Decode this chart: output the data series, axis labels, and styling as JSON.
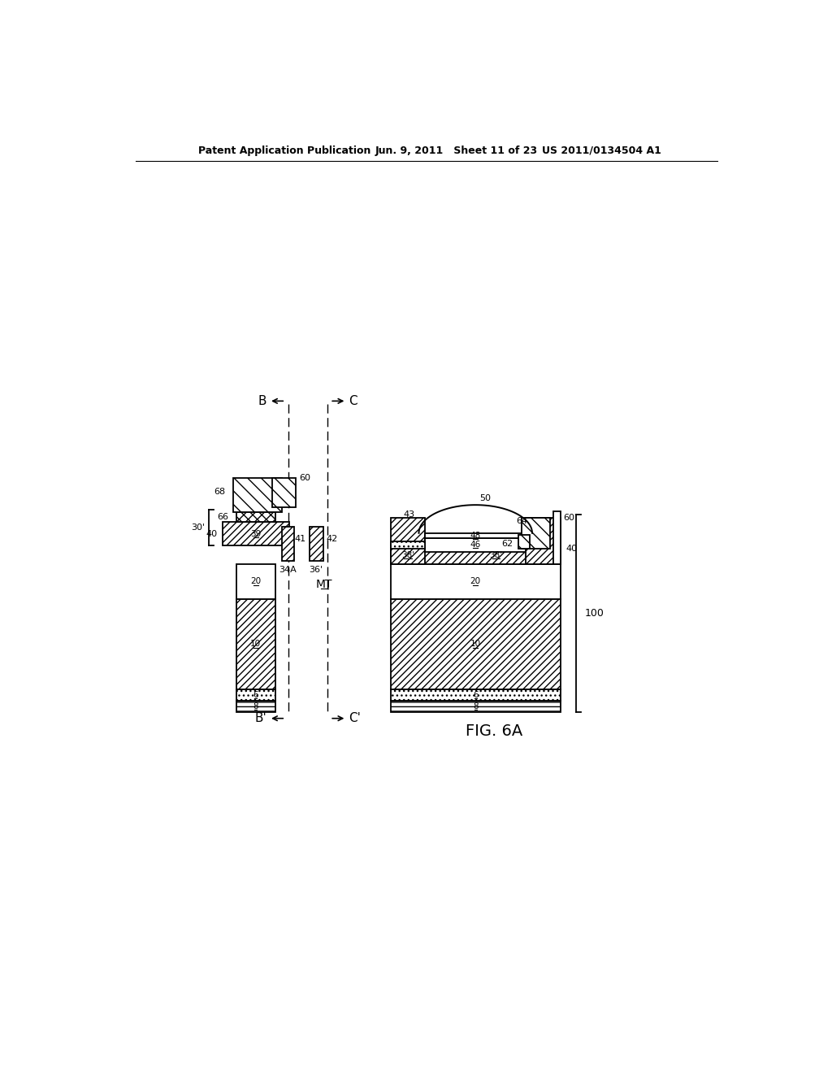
{
  "header_left": "Patent Application Publication",
  "header_mid": "Jun. 9, 2011   Sheet 11 of 23",
  "header_right": "US 2011/0134504 A1",
  "fig_label": "FIG. 6A",
  "bg_color": "#ffffff"
}
